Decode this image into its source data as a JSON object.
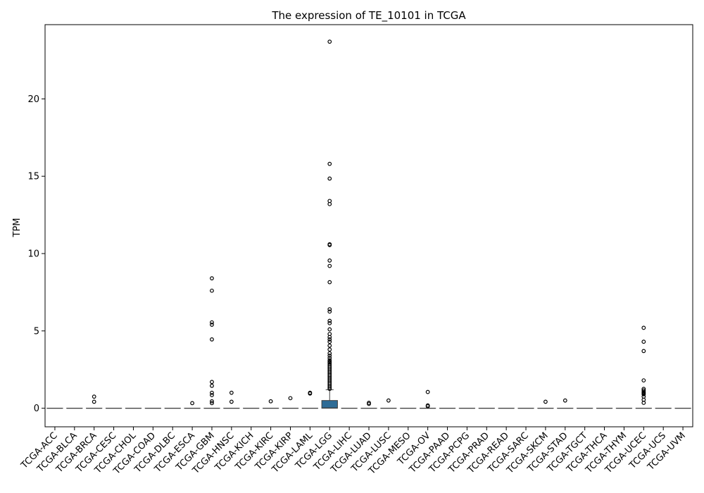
{
  "chart_data": {
    "type": "box",
    "title": "The expression of TE_10101 in TCGA",
    "xlabel": "",
    "ylabel": "TPM",
    "ylim": [
      -1.2,
      24.8
    ],
    "yticks": [
      0,
      5,
      10,
      15,
      20
    ],
    "grid": false,
    "box_color": "#2e6c96",
    "categories": [
      "TCGA-ACC",
      "TCGA-BLCA",
      "TCGA-BRCA",
      "TCGA-CESC",
      "TCGA-CHOL",
      "TCGA-COAD",
      "TCGA-DLBC",
      "TCGA-ESCA",
      "TCGA-GBM",
      "TCGA-HNSC",
      "TCGA-KICH",
      "TCGA-KIRC",
      "TCGA-KIRP",
      "TCGA-LAML",
      "TCGA-LGG",
      "TCGA-LIHC",
      "TCGA-LUAD",
      "TCGA-LUSC",
      "TCGA-MESO",
      "TCGA-OV",
      "TCGA-PAAD",
      "TCGA-PCPG",
      "TCGA-PRAD",
      "TCGA-READ",
      "TCGA-SARC",
      "TCGA-SKCM",
      "TCGA-STAD",
      "TCGA-TGCT",
      "TCGA-THCA",
      "TCGA-THYM",
      "TCGA-UCEC",
      "TCGA-UCS",
      "TCGA-UVM"
    ],
    "boxes": [
      {
        "q1": 0,
        "median": 0,
        "q3": 0,
        "whisker_low": 0,
        "whisker_high": 0,
        "outliers": []
      },
      {
        "q1": 0,
        "median": 0,
        "q3": 0,
        "whisker_low": 0,
        "whisker_high": 0,
        "outliers": []
      },
      {
        "q1": 0,
        "median": 0,
        "q3": 0,
        "whisker_low": 0,
        "whisker_high": 0,
        "outliers": [
          0.75,
          0.42
        ]
      },
      {
        "q1": 0,
        "median": 0,
        "q3": 0,
        "whisker_low": 0,
        "whisker_high": 0,
        "outliers": []
      },
      {
        "q1": 0,
        "median": 0,
        "q3": 0,
        "whisker_low": 0,
        "whisker_high": 0,
        "outliers": []
      },
      {
        "q1": 0,
        "median": 0,
        "q3": 0,
        "whisker_low": 0,
        "whisker_high": 0,
        "outliers": []
      },
      {
        "q1": 0,
        "median": 0,
        "q3": 0,
        "whisker_low": 0,
        "whisker_high": 0,
        "outliers": []
      },
      {
        "q1": 0,
        "median": 0,
        "q3": 0,
        "whisker_low": 0,
        "whisker_high": 0,
        "outliers": [
          0.33
        ]
      },
      {
        "q1": 0,
        "median": 0,
        "q3": 0,
        "whisker_low": 0,
        "whisker_high": 0,
        "outliers": [
          8.4,
          7.6,
          5.55,
          5.4,
          4.45,
          1.7,
          1.45,
          1.0,
          0.85,
          0.45,
          0.33
        ]
      },
      {
        "q1": 0,
        "median": 0,
        "q3": 0,
        "whisker_low": 0,
        "whisker_high": 0,
        "outliers": [
          1.0,
          0.42
        ]
      },
      {
        "q1": 0,
        "median": 0,
        "q3": 0,
        "whisker_low": 0,
        "whisker_high": 0,
        "outliers": []
      },
      {
        "q1": 0,
        "median": 0,
        "q3": 0,
        "whisker_low": 0,
        "whisker_high": 0,
        "outliers": [
          0.45
        ]
      },
      {
        "q1": 0,
        "median": 0,
        "q3": 0,
        "whisker_low": 0,
        "whisker_high": 0,
        "outliers": [
          0.65
        ]
      },
      {
        "q1": 0,
        "median": 0,
        "q3": 0,
        "whisker_low": 0,
        "whisker_high": 0,
        "outliers": [
          1.0,
          0.95
        ]
      },
      {
        "q1": 0,
        "median": 0.02,
        "q3": 0.5,
        "whisker_low": 0,
        "whisker_high": 1.2,
        "outliers": [
          23.7,
          15.8,
          14.85,
          13.4,
          13.2,
          10.6,
          10.55,
          9.55,
          9.2,
          8.15,
          6.4,
          6.25,
          5.65,
          5.5,
          5.1,
          4.8,
          4.6,
          4.45,
          4.3,
          4.05,
          3.8,
          3.55,
          3.4,
          3.25,
          3.1,
          3.0,
          2.95,
          2.85,
          2.75,
          2.65,
          2.55,
          2.45,
          2.35,
          2.25,
          2.15,
          2.05,
          1.95,
          1.85,
          1.75,
          1.65,
          1.55,
          1.45,
          1.35,
          1.25
        ]
      },
      {
        "q1": 0,
        "median": 0,
        "q3": 0,
        "whisker_low": 0,
        "whisker_high": 0,
        "outliers": []
      },
      {
        "q1": 0,
        "median": 0,
        "q3": 0,
        "whisker_low": 0,
        "whisker_high": 0,
        "outliers": [
          0.35,
          0.28
        ]
      },
      {
        "q1": 0,
        "median": 0,
        "q3": 0,
        "whisker_low": 0,
        "whisker_high": 0,
        "outliers": [
          0.5
        ]
      },
      {
        "q1": 0,
        "median": 0,
        "q3": 0,
        "whisker_low": 0,
        "whisker_high": 0,
        "outliers": []
      },
      {
        "q1": 0,
        "median": 0,
        "q3": 0,
        "whisker_low": 0,
        "whisker_high": 0,
        "outliers": [
          1.05,
          0.18,
          0.12
        ]
      },
      {
        "q1": 0,
        "median": 0,
        "q3": 0,
        "whisker_low": 0,
        "whisker_high": 0,
        "outliers": []
      },
      {
        "q1": 0,
        "median": 0,
        "q3": 0,
        "whisker_low": 0,
        "whisker_high": 0,
        "outliers": []
      },
      {
        "q1": 0,
        "median": 0,
        "q3": 0,
        "whisker_low": 0,
        "whisker_high": 0,
        "outliers": []
      },
      {
        "q1": 0,
        "median": 0,
        "q3": 0,
        "whisker_low": 0,
        "whisker_high": 0,
        "outliers": []
      },
      {
        "q1": 0,
        "median": 0,
        "q3": 0,
        "whisker_low": 0,
        "whisker_high": 0,
        "outliers": []
      },
      {
        "q1": 0,
        "median": 0,
        "q3": 0,
        "whisker_low": 0,
        "whisker_high": 0,
        "outliers": [
          0.42
        ]
      },
      {
        "q1": 0,
        "median": 0,
        "q3": 0,
        "whisker_low": 0,
        "whisker_high": 0,
        "outliers": [
          0.5
        ]
      },
      {
        "q1": 0,
        "median": 0,
        "q3": 0,
        "whisker_low": 0,
        "whisker_high": 0,
        "outliers": []
      },
      {
        "q1": 0,
        "median": 0,
        "q3": 0,
        "whisker_low": 0,
        "whisker_high": 0,
        "outliers": []
      },
      {
        "q1": 0,
        "median": 0,
        "q3": 0,
        "whisker_low": 0,
        "whisker_high": 0,
        "outliers": []
      },
      {
        "q1": 0,
        "median": 0,
        "q3": 0,
        "whisker_low": 0,
        "whisker_high": 0,
        "outliers": [
          5.2,
          4.3,
          3.7,
          1.8,
          1.25,
          1.15,
          1.05,
          1.0,
          0.95,
          0.9,
          0.75,
          0.55,
          0.35
        ]
      },
      {
        "q1": 0,
        "median": 0,
        "q3": 0,
        "whisker_low": 0,
        "whisker_high": 0,
        "outliers": []
      },
      {
        "q1": 0,
        "median": 0,
        "q3": 0,
        "whisker_low": 0,
        "whisker_high": 0,
        "outliers": []
      }
    ]
  }
}
